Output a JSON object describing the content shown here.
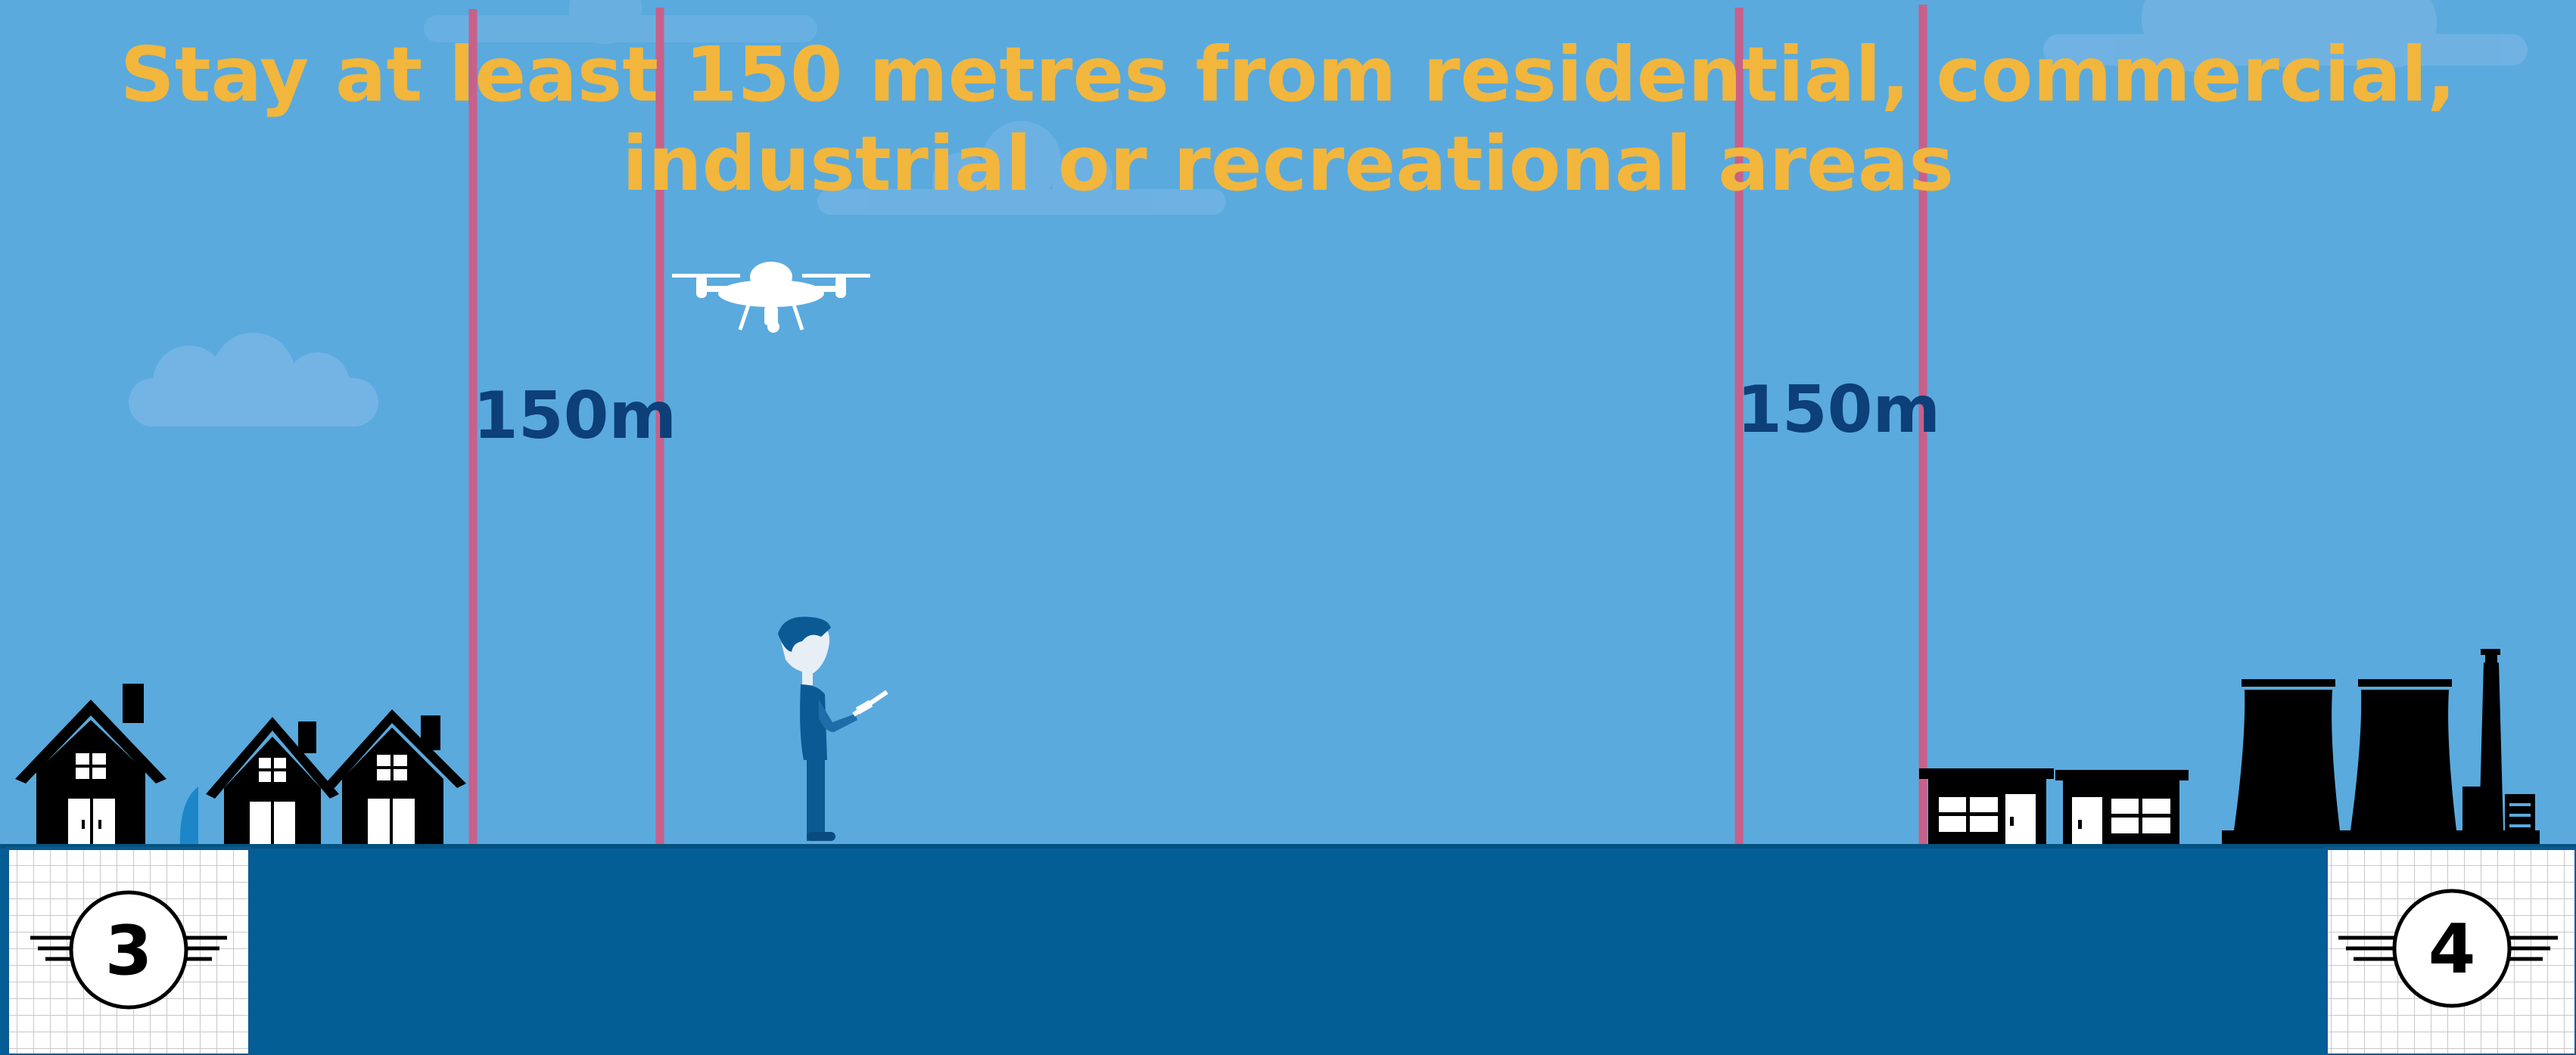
{
  "title": {
    "line1": "Stay at least 150 metres from residential, commercial,",
    "line2": "industrial or recreational areas"
  },
  "distance_labels": {
    "left": "150m",
    "right": "150m"
  },
  "badges": {
    "left": "3",
    "right": "4"
  },
  "colors": {
    "sky": "#5aaade",
    "ground": "#045e96",
    "title": "#f2b63c",
    "label": "#0d3f78",
    "boundary_line": "#c8608a",
    "buildings": "#000000"
  },
  "icons": [
    "cloud-icon",
    "drone-icon",
    "pilot-figure",
    "house-icon",
    "commercial-building-icon",
    "industrial-plant-icon",
    "boundary-line",
    "badge-icon"
  ]
}
